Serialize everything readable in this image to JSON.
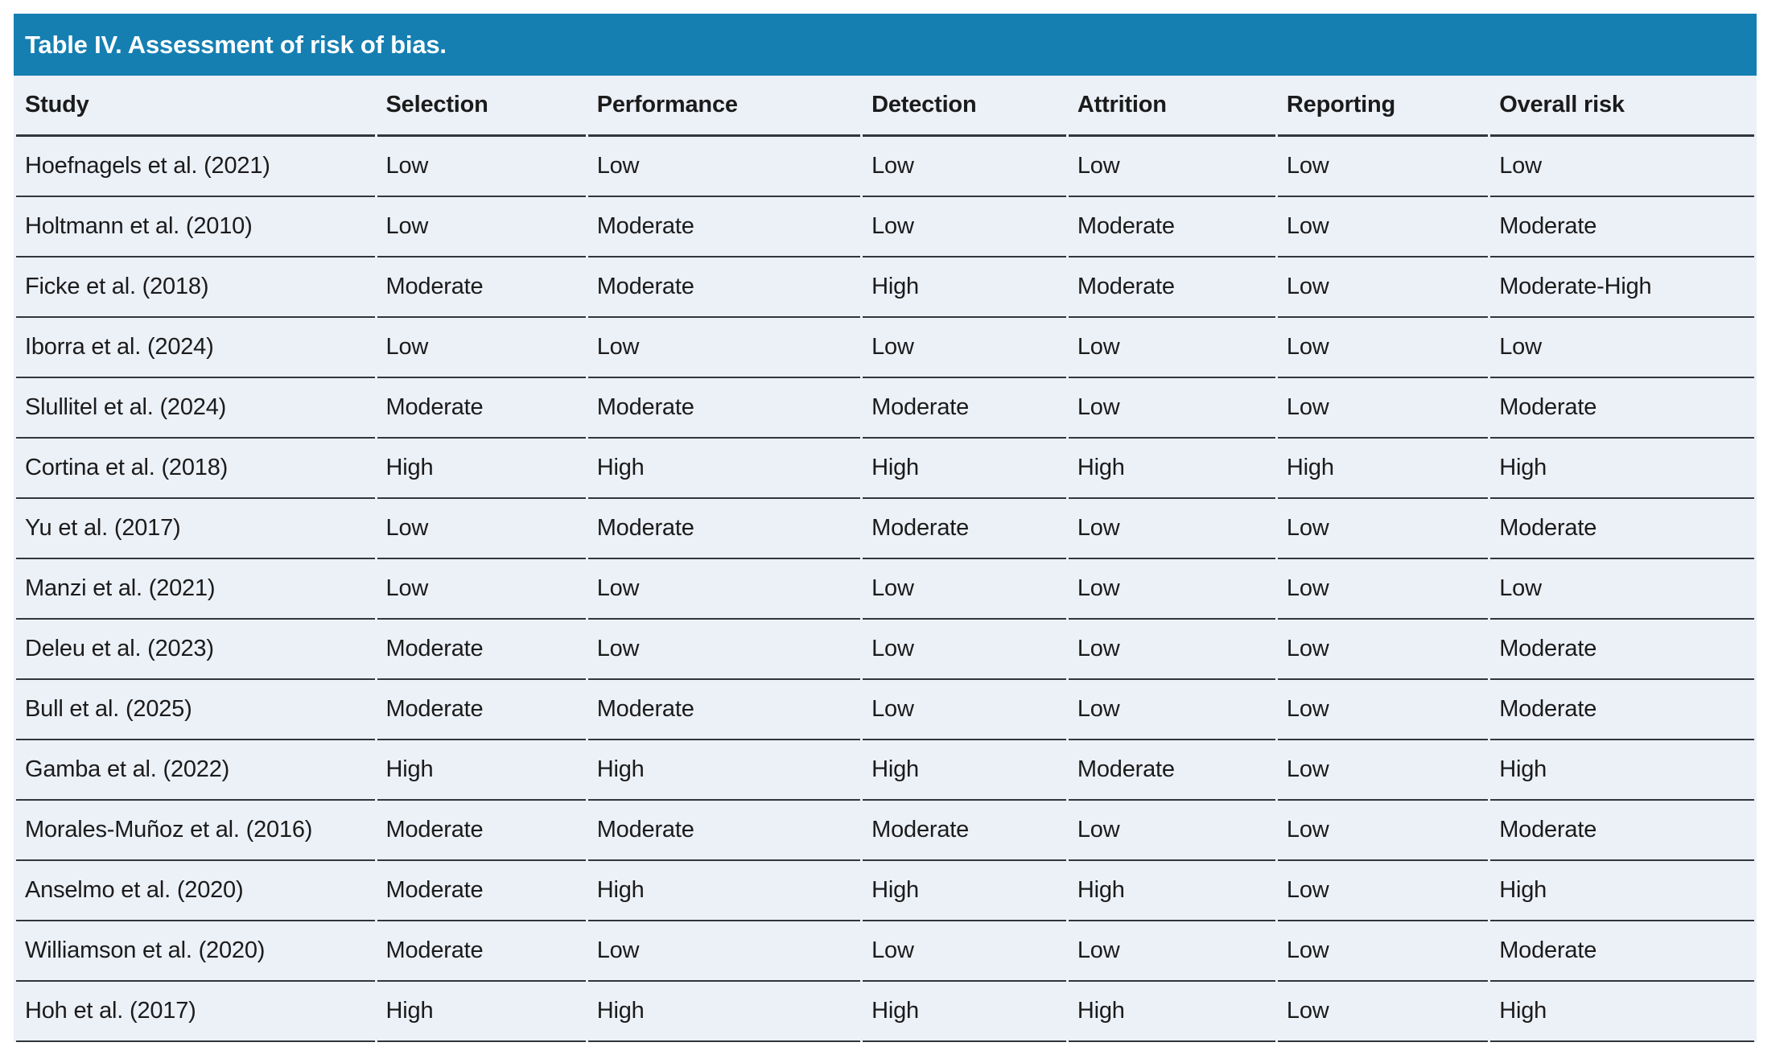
{
  "table": {
    "title": "Table IV. Assessment of risk of bias.",
    "columns": [
      "Study",
      "Selection",
      "Performance",
      "Detection",
      "Attrition",
      "Reporting",
      "Overall risk"
    ],
    "rows": [
      [
        "Hoefnagels et al. (2021)",
        "Low",
        "Low",
        "Low",
        "Low",
        "Low",
        "Low"
      ],
      [
        "Holtmann et al. (2010)",
        "Low",
        "Moderate",
        "Low",
        "Moderate",
        "Low",
        "Moderate"
      ],
      [
        "Ficke et al. (2018)",
        "Moderate",
        "Moderate",
        "High",
        "Moderate",
        "Low",
        "Moderate-High"
      ],
      [
        "Iborra et al. (2024)",
        "Low",
        "Low",
        "Low",
        "Low",
        "Low",
        "Low"
      ],
      [
        "Slullitel et al. (2024)",
        "Moderate",
        "Moderate",
        "Moderate",
        "Low",
        "Low",
        "Moderate"
      ],
      [
        "Cortina et al. (2018)",
        "High",
        "High",
        "High",
        "High",
        "High",
        "High"
      ],
      [
        "Yu et al. (2017)",
        "Low",
        "Moderate",
        "Moderate",
        "Low",
        "Low",
        "Moderate"
      ],
      [
        "Manzi et al. (2021)",
        "Low",
        "Low",
        "Low",
        "Low",
        "Low",
        "Low"
      ],
      [
        "Deleu et al. (2023)",
        "Moderate",
        "Low",
        "Low",
        "Low",
        "Low",
        "Moderate"
      ],
      [
        "Bull et al. (2025)",
        "Moderate",
        "Moderate",
        "Low",
        "Low",
        "Low",
        "Moderate"
      ],
      [
        "Gamba et al. (2022)",
        "High",
        "High",
        "High",
        "Moderate",
        "Low",
        "High"
      ],
      [
        "Morales-Muñoz et al. (2016)",
        "Moderate",
        "Moderate",
        "Moderate",
        "Low",
        "Low",
        "Moderate"
      ],
      [
        "Anselmo et al. (2020)",
        "Moderate",
        "High",
        "High",
        "High",
        "Low",
        "High"
      ],
      [
        "Williamson et al. (2020)",
        "Moderate",
        "Low",
        "Low",
        "Low",
        "Low",
        "Moderate"
      ],
      [
        "Hoh et al. (2017)",
        "High",
        "High",
        "High",
        "High",
        "Low",
        "High"
      ]
    ]
  },
  "colors": {
    "title_bar_bg": "#157FB2",
    "title_text": "#FFFFFF",
    "row_bg": "#ECF0F7",
    "rule_color": "#32363C",
    "body_text": "#1B1B1B",
    "page_bg": "#FFFFFF"
  }
}
